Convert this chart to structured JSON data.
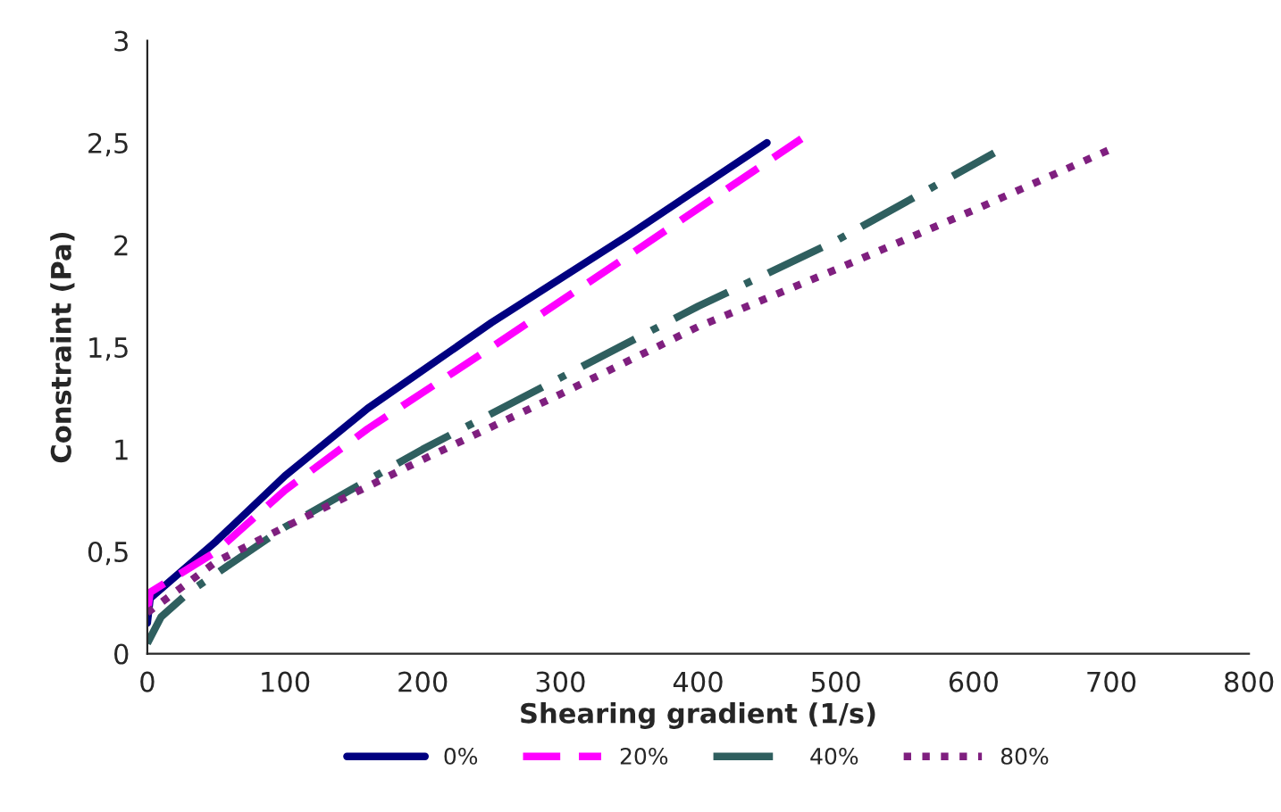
{
  "chart_data": {
    "type": "line",
    "xlabel": "Shearing gradient (1/s)",
    "ylabel": "Constraint (Pa)",
    "xlim": [
      0,
      800
    ],
    "xticks": [
      0,
      100,
      200,
      300,
      400,
      500,
      600,
      700,
      800
    ],
    "ylim": [
      0,
      3
    ],
    "yticks": [
      0,
      {
        "value": 0.5,
        "label": "0,5"
      },
      1,
      {
        "value": 1.5,
        "label": "1,5"
      },
      2,
      {
        "value": 2.5,
        "label": "2,5"
      },
      3
    ],
    "grid": false,
    "legend": "bottom",
    "marker": "none",
    "series": [
      {
        "name": "0%",
        "color": "#000080",
        "line_style": "solid",
        "x": [
          0,
          2,
          50,
          100,
          160,
          250,
          350,
          450
        ],
        "values": [
          0.15,
          0.27,
          0.55,
          0.87,
          1.2,
          1.62,
          2.05,
          2.5
        ]
      },
      {
        "name": "20%",
        "color": "#ff00ff",
        "line_style": "dashed",
        "x": [
          0,
          2,
          50,
          100,
          160,
          250,
          350,
          475
        ],
        "values": [
          0.2,
          0.3,
          0.5,
          0.8,
          1.1,
          1.5,
          1.95,
          2.52
        ]
      },
      {
        "name": "40%",
        "color": "#2f5f5f",
        "line_style": "dashdot",
        "x": [
          0,
          10,
          30,
          100,
          200,
          300,
          400,
          500,
          615
        ],
        "values": [
          0.05,
          0.18,
          0.3,
          0.62,
          1.0,
          1.35,
          1.7,
          2.02,
          2.45
        ]
      },
      {
        "name": "80%",
        "color": "#7f1f7f",
        "line_style": "dotted",
        "x": [
          0,
          50,
          100,
          200,
          300,
          400,
          500,
          600,
          700
        ],
        "values": [
          0.2,
          0.45,
          0.62,
          0.95,
          1.27,
          1.6,
          1.88,
          2.17,
          2.47
        ]
      }
    ]
  }
}
